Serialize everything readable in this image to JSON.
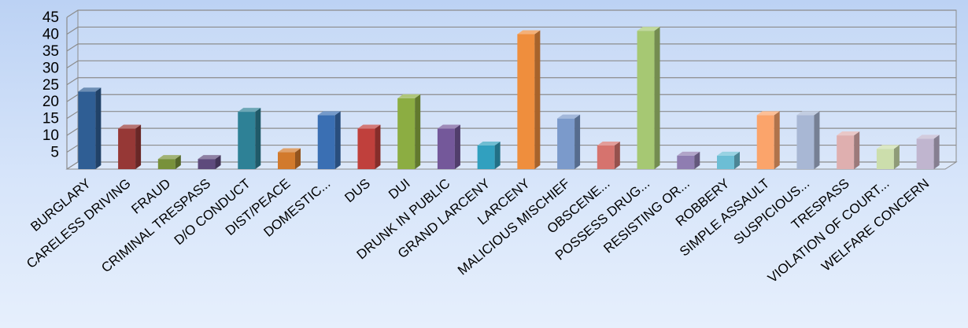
{
  "chart_data": {
    "type": "bar",
    "title": "",
    "xlabel": "",
    "ylabel": "",
    "ylim": [
      0,
      45
    ],
    "yticks": [
      5,
      10,
      15,
      20,
      25,
      30,
      35,
      40,
      45
    ],
    "grid": true,
    "legend": "none",
    "categories": [
      "BURGLARY",
      "CARELESS DRIVING",
      "FRAUD",
      "CRIMINAL TRESPASS",
      "D/O CONDUCT",
      "DIST/PEACE",
      "DOMESTIC...",
      "DUS",
      "DUI",
      "DRUNK IN PUBLIC",
      "GRAND LARCENY",
      "LARCENY",
      "MALICIOUS MISCHIEF",
      "OBSCENE...",
      "POSSESS DRUG...",
      "RESISTING OR...",
      "ROBBERY",
      "SIMPLE ASSAULT",
      "SUSPICIOUS...",
      "TRESPASS",
      "VIOLATION OF COURT...",
      "WELFARE CONCERN"
    ],
    "values": [
      23,
      12,
      3,
      3,
      17,
      5,
      16,
      12,
      21,
      12,
      7,
      40,
      15,
      7,
      41,
      4,
      4,
      16,
      16,
      10,
      6,
      9
    ],
    "colors": [
      "#2f5e94",
      "#963836",
      "#78913a",
      "#5e4a7c",
      "#2e8196",
      "#d27a2c",
      "#3a6fb3",
      "#c0403c",
      "#8cad42",
      "#74589a",
      "#31a0bf",
      "#ef8e3d",
      "#7b9acb",
      "#d6736e",
      "#a6c873",
      "#8f7db1",
      "#6cbed5",
      "#fba46b",
      "#a8b7d4",
      "#dfafaf",
      "#ccdeac",
      "#c0b5cf"
    ]
  }
}
